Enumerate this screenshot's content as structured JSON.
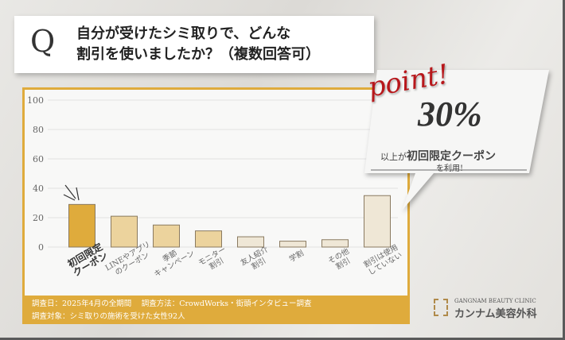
{
  "question": {
    "mark": "Q",
    "title": "自分が受けたシミ取りで、どんな\n割引を使いましたか？（複数回答可）"
  },
  "point": {
    "word": "point!",
    "value": "30%",
    "text_prefix": "以上が",
    "text_bold": "初回限定クーポン",
    "text_suffix": "を利用!"
  },
  "footer": {
    "line1": "調査日：2025年4月の全期間　 調査方法：CrowdWorks・街頭インタビュー調査",
    "line2": "調査対象：シミ取りの施術を受けた女性92人"
  },
  "logo": {
    "en": "GANGNAM BEAUTY CLINIC",
    "jp": "カンナム美容外科"
  },
  "colors": {
    "highlight": "#dfab3c",
    "medium": "#ecd39d",
    "light": "#efe7d6",
    "point_red": "#b8171b"
  },
  "chart_data": {
    "type": "bar",
    "categories": [
      "初回限定\nクーポン",
      "LINEやアプリ\nのクーポン",
      "季節\nキャンペーン",
      "モニター\n割引",
      "友人紹介\n割引",
      "学割",
      "その他\n割引",
      "割引は使用\nしていない"
    ],
    "values": [
      29,
      21,
      15,
      11,
      7,
      4,
      5,
      35
    ],
    "bar_colors": [
      "#dfab3c",
      "#ecd39d",
      "#ecd39d",
      "#ecd39d",
      "#efe7d6",
      "#efe7d6",
      "#efe7d6",
      "#efe7d6"
    ],
    "ylim": [
      0,
      100
    ],
    "yticks": [
      0,
      20,
      40,
      60,
      80,
      100
    ],
    "grid": true,
    "xlabel": "",
    "ylabel": ""
  }
}
